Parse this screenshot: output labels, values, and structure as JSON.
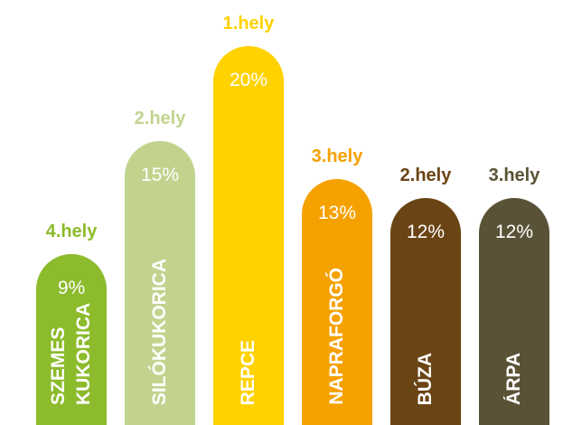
{
  "chart_data": {
    "type": "bar",
    "categories": [
      "SZEMES KUKORICA",
      "SILÓKUKORICA",
      "REPCE",
      "NAPRAFORGÓ",
      "BÚZA",
      "ÁRPA"
    ],
    "values": [
      9,
      15,
      20,
      13,
      12,
      12
    ],
    "value_labels": [
      "9%",
      "15%",
      "20%",
      "13%",
      "12%",
      "12%"
    ],
    "annotations": [
      "4.hely",
      "2.hely",
      "1.hely",
      "3.hely",
      "2.hely",
      "3.hely"
    ],
    "colors": [
      "#8cbb2c",
      "#c2d38e",
      "#ffd200",
      "#f5a100",
      "#6a4414",
      "#5a5236"
    ],
    "ylim": [
      0,
      21
    ]
  }
}
